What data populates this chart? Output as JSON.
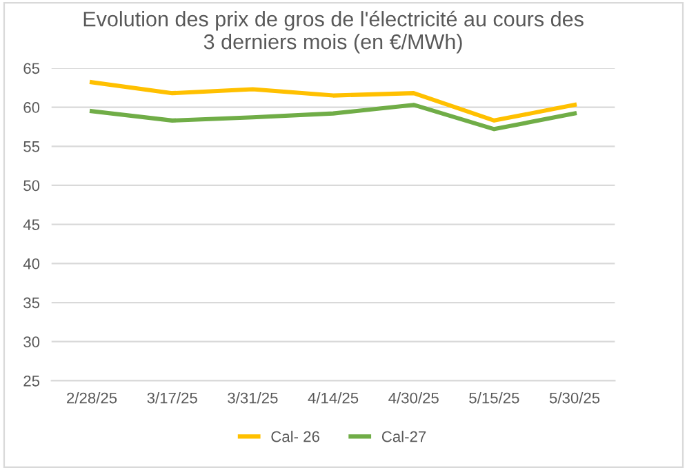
{
  "chart_data": {
    "type": "line",
    "title": "Evolution des prix de gros de l'électricité au cours des\n3 derniers mois (en €/MWh)",
    "categories": [
      "2/28/25",
      "3/17/25",
      "3/31/25",
      "4/14/25",
      "4/30/25",
      "5/15/25",
      "5/30/25"
    ],
    "series": [
      {
        "name": "Cal- 26",
        "color": "#ffc000",
        "values": [
          63.2,
          61.8,
          62.3,
          61.5,
          61.8,
          58.3,
          60.3
        ]
      },
      {
        "name": "Cal-27",
        "color": "#70ad47",
        "values": [
          59.5,
          58.3,
          58.7,
          59.2,
          60.3,
          57.2,
          59.2
        ]
      }
    ],
    "ylim": [
      25,
      65
    ],
    "yticks": [
      25,
      30,
      35,
      40,
      45,
      50,
      55,
      60,
      65
    ],
    "grid": "y",
    "legend": "bottom",
    "marker": "none",
    "line_style": "solid"
  }
}
